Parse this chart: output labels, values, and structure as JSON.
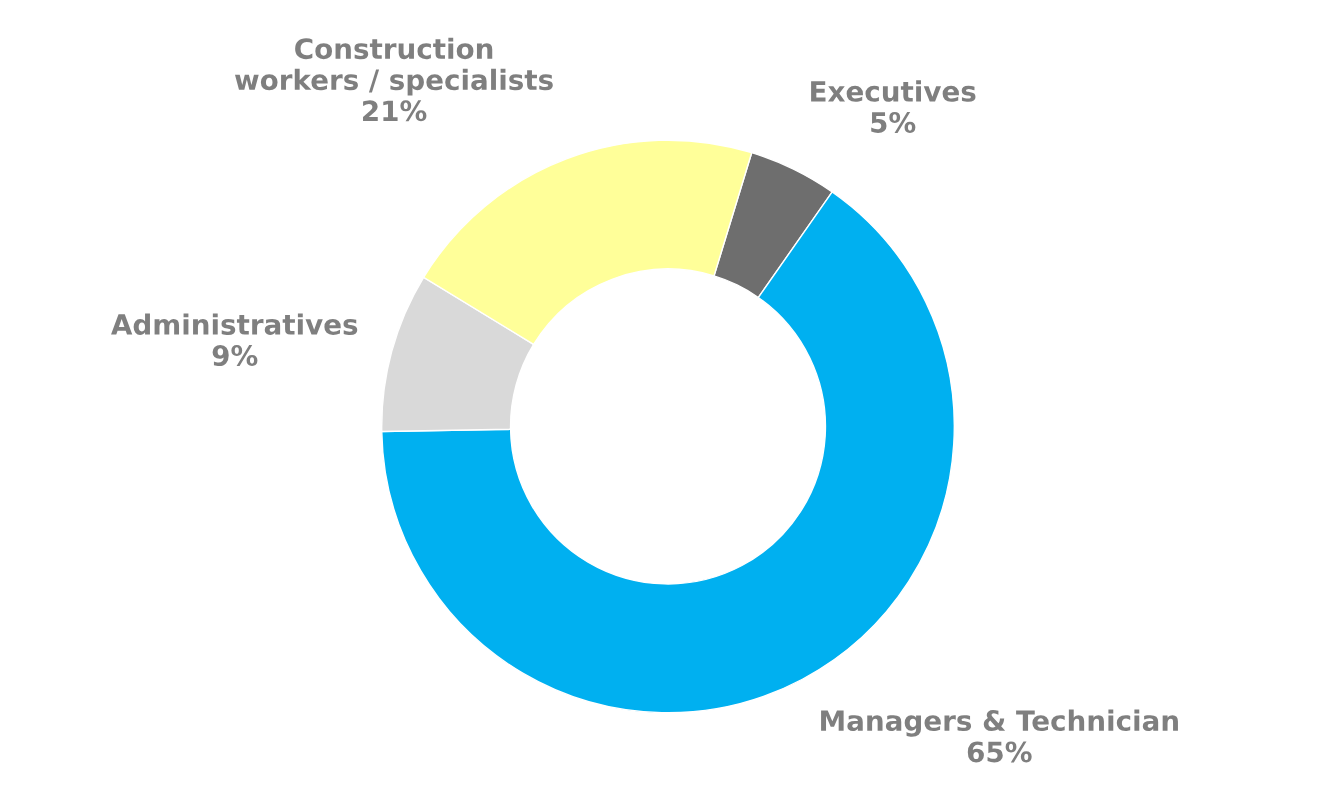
{
  "chart_data": {
    "type": "donut",
    "categories": [
      "Executives",
      "Managers & Technician",
      "Administratives",
      "Construction\nworkers / specialists"
    ],
    "values": [
      5,
      65,
      9,
      21
    ],
    "colors": [
      "#6e6e6e",
      "#00b0f0",
      "#d9d9d9",
      "#ffff99"
    ],
    "value_labels": [
      "5%",
      "65%",
      "9%",
      "21%"
    ],
    "legend": false
  }
}
